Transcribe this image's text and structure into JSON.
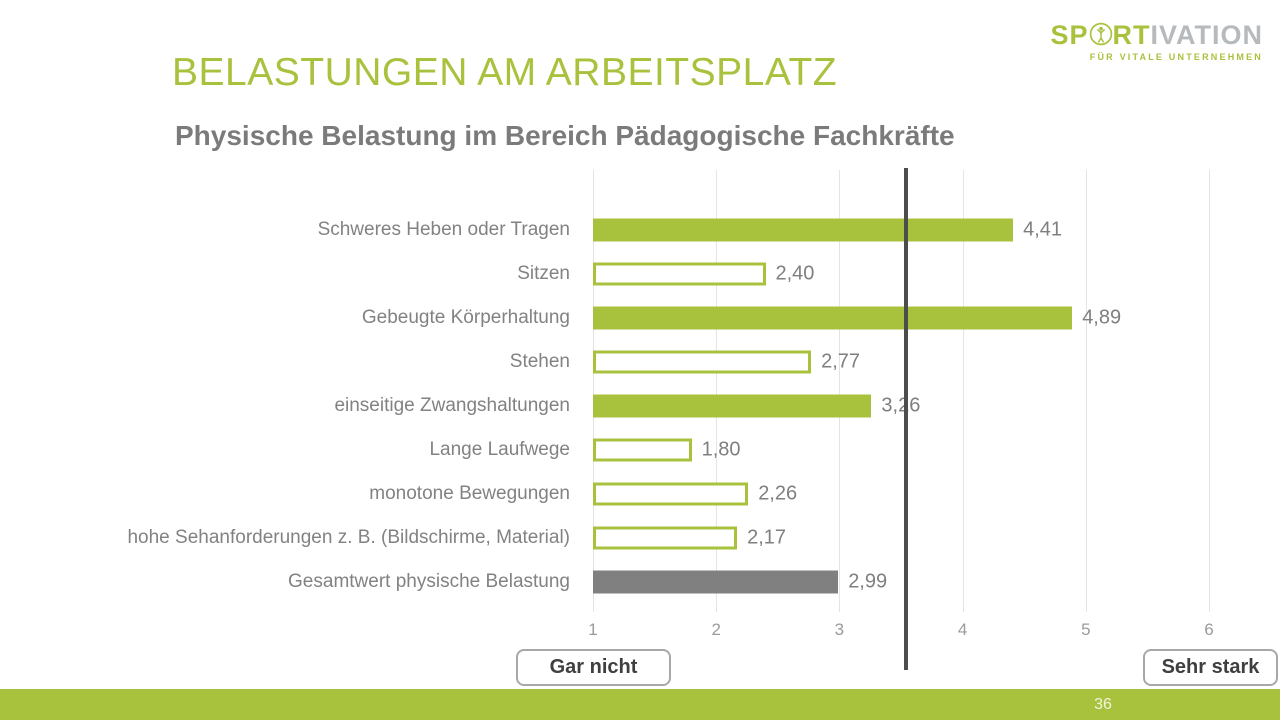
{
  "slide": {
    "title": "BELASTUNGEN AM ARBEITSPLATZ",
    "subtitle": "Physische Belastung im Bereich Pädagogische Fachkräfte",
    "page_number": "36"
  },
  "logo": {
    "text_green_1": "SP",
    "o_icon": "athlete-in-circle-icon",
    "text_green_2": "RT",
    "text_gray": "IVATION",
    "tagline": "FÜR VITALE UNTERNEHMEN"
  },
  "colors": {
    "green": "#a9c23d",
    "bar_gray": "#808080",
    "label_gray": "#828282",
    "value_gray": "#7f7f7f",
    "tick_gray": "#9b9b9b",
    "subtitle_gray": "#7b7b7b",
    "box_text": "#3f3f3f",
    "box_border": "#a8a8a8",
    "reference_line": "#4d4d4d",
    "gridline": "#e4e4e4",
    "logo_gray": "#b6babd",
    "page_number_text": "#f1f3dd"
  },
  "chart_data": {
    "type": "bar",
    "orientation": "horizontal",
    "title": "Physische Belastung im Bereich Pädagogische Fachkräfte",
    "categories": [
      "Schweres Heben oder Tragen",
      "Sitzen",
      "Gebeugte Körperhaltung",
      "Stehen",
      "einseitige Zwangshaltungen",
      "Lange Laufwege",
      "monotone Bewegungen",
      "hohe Sehanforderungen z. B. (Bildschirme, Material)",
      "Gesamtwert physische Belastung"
    ],
    "values": [
      4.41,
      2.4,
      4.89,
      2.77,
      3.26,
      1.8,
      2.26,
      2.17,
      2.99
    ],
    "value_labels": [
      "4,41",
      "2,40",
      "4,89",
      "2,77",
      "3,26",
      "1,80",
      "2,26",
      "2,17",
      "2,99"
    ],
    "bar_styles": [
      "filled",
      "outline",
      "filled",
      "outline",
      "filled",
      "outline",
      "outline",
      "outline",
      "gray"
    ],
    "bar_style_legend": {
      "filled": "green solid bar",
      "outline": "white bar with green border",
      "gray": "gray solid bar (overall value)"
    },
    "xlim": [
      1,
      6
    ],
    "x_ticks": [
      1,
      2,
      3,
      4,
      5,
      6
    ],
    "grid": true,
    "reference_line_x": 3.54,
    "scale_min_label": "Gar nicht",
    "scale_max_label": "Sehr stark"
  }
}
